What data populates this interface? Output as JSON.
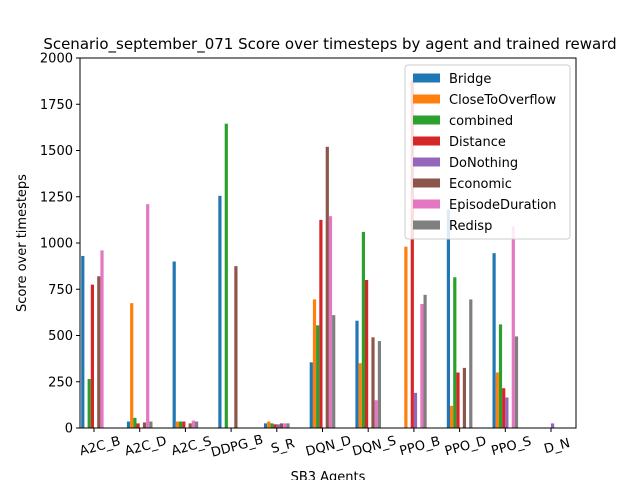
{
  "chart_data": {
    "type": "bar",
    "title": "Scenario_september_071 Score over timesteps by agent and trained reward",
    "xlabel": "SB3 Agents",
    "ylabel": "Score over timesteps",
    "ylim": [
      0,
      2000
    ],
    "yticks": [
      0,
      250,
      500,
      750,
      1000,
      1250,
      1500,
      1750,
      2000
    ],
    "categories": [
      "A2C_B",
      "A2C_D",
      "A2C_S",
      "DDPG_B",
      "S_R",
      "DQN_D",
      "DQN_S",
      "PPO_B",
      "PPO_D",
      "PPO_S",
      "D_N"
    ],
    "legend_position": "top-right",
    "series": [
      {
        "name": "Bridge",
        "color": "#1f77b4",
        "values": [
          930,
          35,
          900,
          1255,
          25,
          355,
          580,
          0,
          1180,
          945,
          0
        ]
      },
      {
        "name": "CloseToOverflow",
        "color": "#ff7f0e",
        "values": [
          0,
          675,
          35,
          0,
          35,
          695,
          350,
          980,
          120,
          300,
          0
        ]
      },
      {
        "name": "combined",
        "color": "#2ca02c",
        "values": [
          265,
          55,
          35,
          1645,
          25,
          555,
          1060,
          0,
          815,
          560,
          0
        ]
      },
      {
        "name": "Distance",
        "color": "#d62728",
        "values": [
          775,
          25,
          35,
          0,
          20,
          1125,
          800,
          1880,
          300,
          215,
          0
        ]
      },
      {
        "name": "DoNothing",
        "color": "#9467bd",
        "values": [
          0,
          0,
          0,
          0,
          20,
          0,
          0,
          190,
          0,
          165,
          25
        ]
      },
      {
        "name": "Economic",
        "color": "#8c564b",
        "values": [
          820,
          30,
          25,
          875,
          25,
          1520,
          490,
          0,
          325,
          0,
          0
        ]
      },
      {
        "name": "EpisodeDuration",
        "color": "#e377c2",
        "values": [
          960,
          1210,
          40,
          0,
          25,
          1145,
          150,
          670,
          0,
          1090,
          0
        ]
      },
      {
        "name": "Redisp",
        "color": "#7f7f7f",
        "values": [
          0,
          35,
          35,
          0,
          25,
          610,
          470,
          720,
          695,
          495,
          0
        ]
      }
    ]
  }
}
